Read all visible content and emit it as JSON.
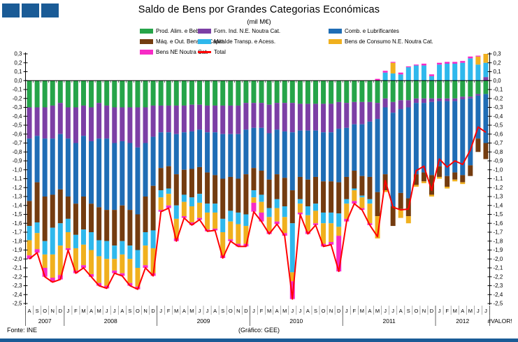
{
  "logo": {
    "color": "#1A5B96",
    "square_count": 3
  },
  "title": "Saldo de Bens por Grandes Categorias Económicas",
  "subtitle": "(mil M€)",
  "footer": {
    "left": "Fonte:  INE",
    "center": "(Gráfico:  GEE)"
  },
  "accent_colors": {
    "logo_blue": "#1A5B96",
    "total_red": "#FF0000"
  },
  "chart_data": {
    "type": "bar",
    "stacked": true,
    "unit": "mil M€",
    "grid": "off",
    "legend_position": "top",
    "y_axis": {
      "min": -2.5,
      "max": 0.3,
      "step": 0.1,
      "sides": "both",
      "tick_labels": [
        "0,3",
        "0,2",
        "0,1",
        "0,0",
        "-0,1",
        "-0,2",
        "-0,3",
        "-0,4",
        "-0,5",
        "-0,6",
        "-0,7",
        "-0,8",
        "-0,9",
        "-1,0",
        "-1,1",
        "-1,2",
        "-1,3",
        "-1,4",
        "-1,5",
        "-1,6",
        "-1,7",
        "-1,8",
        "-1,9",
        "-2,0",
        "-2,1",
        "-2,2",
        "-2,3",
        "-2,4",
        "-2,5"
      ]
    },
    "x_axis": {
      "months": [
        "A",
        "S",
        "O",
        "N",
        "D",
        "J",
        "F",
        "M",
        "A",
        "M",
        "J",
        "J",
        "A",
        "S",
        "O",
        "N",
        "D",
        "J",
        "F",
        "M",
        "A",
        "M",
        "J",
        "J",
        "A",
        "S",
        "O",
        "N",
        "D",
        "J",
        "F",
        "M",
        "A",
        "M",
        "J",
        "J",
        "A",
        "S",
        "O",
        "N",
        "D",
        "J",
        "F",
        "M",
        "A",
        "M",
        "J",
        "J",
        "A",
        "S",
        "O",
        "N",
        "D",
        "J",
        "F",
        "M",
        "A",
        "M",
        "J",
        "J"
      ],
      "years": [
        {
          "label": "2007",
          "months": 5
        },
        {
          "label": "2008",
          "months": 12
        },
        {
          "label": "2009",
          "months": 12
        },
        {
          "label": "2010",
          "months": 12
        },
        {
          "label": "2011",
          "months": 12
        },
        {
          "label": "2012",
          "months": 7,
          "error_label": "#VALOR!"
        }
      ]
    },
    "series": [
      {
        "name": "Prod. Alim. e Bebidas",
        "color": "#26A449",
        "values": [
          -0.3,
          -0.3,
          -0.3,
          -0.28,
          -0.25,
          -0.3,
          -0.3,
          -0.28,
          -0.3,
          -0.25,
          -0.28,
          -0.3,
          -0.3,
          -0.3,
          -0.3,
          -0.3,
          -0.28,
          -0.28,
          -0.28,
          -0.28,
          -0.28,
          -0.27,
          -0.27,
          -0.28,
          -0.28,
          -0.28,
          -0.28,
          -0.28,
          -0.25,
          -0.25,
          -0.25,
          -0.27,
          -0.25,
          -0.25,
          -0.25,
          -0.26,
          -0.26,
          -0.26,
          -0.26,
          -0.26,
          -0.24,
          -0.25,
          -0.24,
          -0.24,
          -0.24,
          -0.25,
          -0.2,
          -0.24,
          -0.22,
          -0.22,
          -0.2,
          -0.2,
          -0.2,
          -0.2,
          -0.2,
          -0.2,
          -0.18,
          -0.18,
          -0.15,
          -0.15
        ]
      },
      {
        "name": "Forn. Ind. N.E. Noutra Cat.",
        "color": "#7C3FA5",
        "values": [
          -0.35,
          -0.32,
          -0.35,
          -0.37,
          -0.35,
          -0.35,
          -0.4,
          -0.34,
          -0.38,
          -0.4,
          -0.37,
          -0.4,
          -0.38,
          -0.4,
          -0.45,
          -0.4,
          -0.35,
          -0.3,
          -0.3,
          -0.32,
          -0.3,
          -0.3,
          -0.28,
          -0.3,
          -0.3,
          -0.32,
          -0.32,
          -0.32,
          -0.3,
          -0.28,
          -0.28,
          -0.32,
          -0.3,
          -0.32,
          -0.33,
          -0.3,
          -0.3,
          -0.3,
          -0.32,
          -0.32,
          -0.3,
          -0.28,
          -0.25,
          -0.25,
          -0.22,
          -0.18,
          -0.1,
          -0.12,
          -0.1,
          -0.08,
          -0.05,
          -0.05,
          -0.04,
          -0.03,
          -0.03,
          -0.03,
          -0.03,
          -0.02,
          -0.02,
          0.04
        ]
      },
      {
        "name": "Comb. e Lubrificantes",
        "color": "#1F6DB5",
        "values": [
          -0.7,
          -0.52,
          -0.65,
          -0.63,
          -0.62,
          -0.65,
          -0.68,
          -0.68,
          -0.7,
          -0.77,
          -0.8,
          -0.75,
          -0.72,
          -0.75,
          -0.75,
          -0.6,
          -0.55,
          -0.4,
          -0.38,
          -0.45,
          -0.42,
          -0.42,
          -0.42,
          -0.45,
          -0.48,
          -0.5,
          -0.48,
          -0.5,
          -0.5,
          -0.45,
          -0.48,
          -0.52,
          -0.5,
          -0.52,
          -0.65,
          -0.52,
          -0.55,
          -0.52,
          -0.55,
          -0.55,
          -0.6,
          -0.55,
          -0.52,
          -0.58,
          -0.62,
          -0.82,
          -0.75,
          -1.05,
          -0.94,
          -1.02,
          -0.8,
          -0.78,
          -0.82,
          -0.73,
          -0.84,
          -0.8,
          -0.85,
          -0.75,
          -0.48,
          -0.55
        ]
      },
      {
        "name": "Máq. e Out. Bens de Capital",
        "color": "#743C10",
        "values": [
          -0.28,
          -0.45,
          -0.5,
          -0.37,
          -0.38,
          -0.25,
          -0.35,
          -0.37,
          -0.32,
          -0.37,
          -0.35,
          -0.4,
          -0.4,
          -0.4,
          -0.4,
          -0.4,
          -0.5,
          -0.25,
          -0.25,
          -0.35,
          -0.28,
          -0.32,
          -0.3,
          -0.35,
          -0.32,
          -0.45,
          -0.38,
          -0.38,
          -0.45,
          -0.25,
          -0.27,
          -0.32,
          -0.28,
          -0.32,
          -0.37,
          -0.25,
          -0.3,
          -0.3,
          -0.35,
          -0.35,
          -0.35,
          -0.25,
          -0.2,
          -0.22,
          -0.25,
          -0.27,
          -0.18,
          -0.22,
          -0.18,
          -0.2,
          -0.12,
          -0.1,
          -0.22,
          -0.12,
          -0.12,
          -0.08,
          -0.08,
          -0.12,
          -0.15,
          -0.18
        ]
      },
      {
        "name": "Mat. de Transp. e Acess.",
        "color": "#2FB8EC",
        "values": [
          -0.16,
          -0.12,
          -0.15,
          -0.3,
          -0.25,
          -0.15,
          -0.15,
          -0.17,
          -0.2,
          -0.18,
          -0.2,
          -0.15,
          -0.15,
          -0.15,
          -0.2,
          -0.15,
          -0.2,
          -0.08,
          -0.06,
          -0.15,
          -0.08,
          -0.1,
          -0.1,
          -0.1,
          -0.1,
          -0.15,
          -0.12,
          -0.13,
          -0.13,
          -0.08,
          -0.08,
          -0.1,
          -0.1,
          -0.12,
          -0.55,
          -0.05,
          -0.1,
          -0.08,
          -0.12,
          -0.12,
          -0.15,
          -0.05,
          -0.02,
          -0.02,
          -0.05,
          0.0,
          0.09,
          0.08,
          0.07,
          0.15,
          0.17,
          0.17,
          0.05,
          0.18,
          0.19,
          0.19,
          0.2,
          0.25,
          0.18,
          0.16
        ]
      },
      {
        "name": "Bens de Consumo N.E. Noutra Cat.",
        "color": "#F0B01E",
        "values": [
          -0.17,
          -0.18,
          -0.15,
          -0.26,
          -0.33,
          -0.18,
          -0.25,
          -0.23,
          -0.27,
          -0.3,
          -0.3,
          -0.13,
          -0.21,
          -0.27,
          -0.21,
          -0.22,
          -0.28,
          -0.14,
          -0.13,
          -0.22,
          -0.16,
          -0.18,
          -0.17,
          -0.19,
          -0.18,
          -0.26,
          -0.2,
          -0.22,
          -0.2,
          -0.06,
          -0.12,
          -0.16,
          -0.15,
          -0.18,
          -0.1,
          -0.1,
          -0.18,
          -0.14,
          -0.23,
          -0.21,
          -0.1,
          -0.17,
          -0.12,
          -0.12,
          -0.22,
          -0.25,
          -0.02,
          0.12,
          -0.1,
          -0.08,
          -0.02,
          -0.02,
          -0.02,
          -0.02,
          -0.02,
          -0.02,
          -0.02,
          0.0,
          0.09,
          0.1
        ]
      },
      {
        "name": "Bens NE Noutra Cat.",
        "color": "#F72BC6",
        "values": [
          -0.04,
          -0.04,
          -0.1,
          -0.05,
          -0.05,
          -0.02,
          -0.03,
          -0.03,
          -0.03,
          -0.03,
          -0.03,
          -0.03,
          -0.03,
          -0.03,
          -0.03,
          -0.03,
          -0.03,
          -0.02,
          -0.03,
          -0.03,
          -0.02,
          -0.03,
          -0.02,
          -0.02,
          -0.02,
          -0.03,
          -0.02,
          -0.03,
          -0.03,
          -0.1,
          -0.1,
          -0.03,
          -0.03,
          -0.03,
          -0.2,
          -0.02,
          -0.03,
          -0.02,
          -0.03,
          -0.03,
          -0.4,
          -0.03,
          -0.03,
          -0.02,
          -0.02,
          0.02,
          0.02,
          0.01,
          0.02,
          0.01,
          0.01,
          0.02,
          0.02,
          0.02,
          0.02,
          0.02,
          0.02,
          0.02,
          0.01,
          0.0
        ]
      }
    ],
    "total": {
      "name": "Total",
      "color": "#FF0000",
      "values": [
        -2.0,
        -1.93,
        -2.2,
        -2.26,
        -2.23,
        -1.9,
        -2.16,
        -2.1,
        -2.2,
        -2.3,
        -2.33,
        -2.16,
        -2.19,
        -2.3,
        -2.34,
        -2.1,
        -2.19,
        -1.47,
        -1.43,
        -1.8,
        -1.54,
        -1.62,
        -1.56,
        -1.69,
        -1.68,
        -1.99,
        -1.8,
        -1.86,
        -1.86,
        -1.47,
        -1.58,
        -1.72,
        -1.61,
        -1.74,
        -2.45,
        -1.5,
        -1.72,
        -1.62,
        -1.86,
        -1.84,
        -2.14,
        -1.58,
        -1.38,
        -1.45,
        -1.62,
        -1.75,
        -1.12,
        -1.42,
        -1.45,
        -1.44,
        -1.01,
        -0.96,
        -1.23,
        -0.88,
        -0.97,
        -0.9,
        -0.94,
        -0.78,
        -0.52,
        -0.58
      ]
    }
  }
}
